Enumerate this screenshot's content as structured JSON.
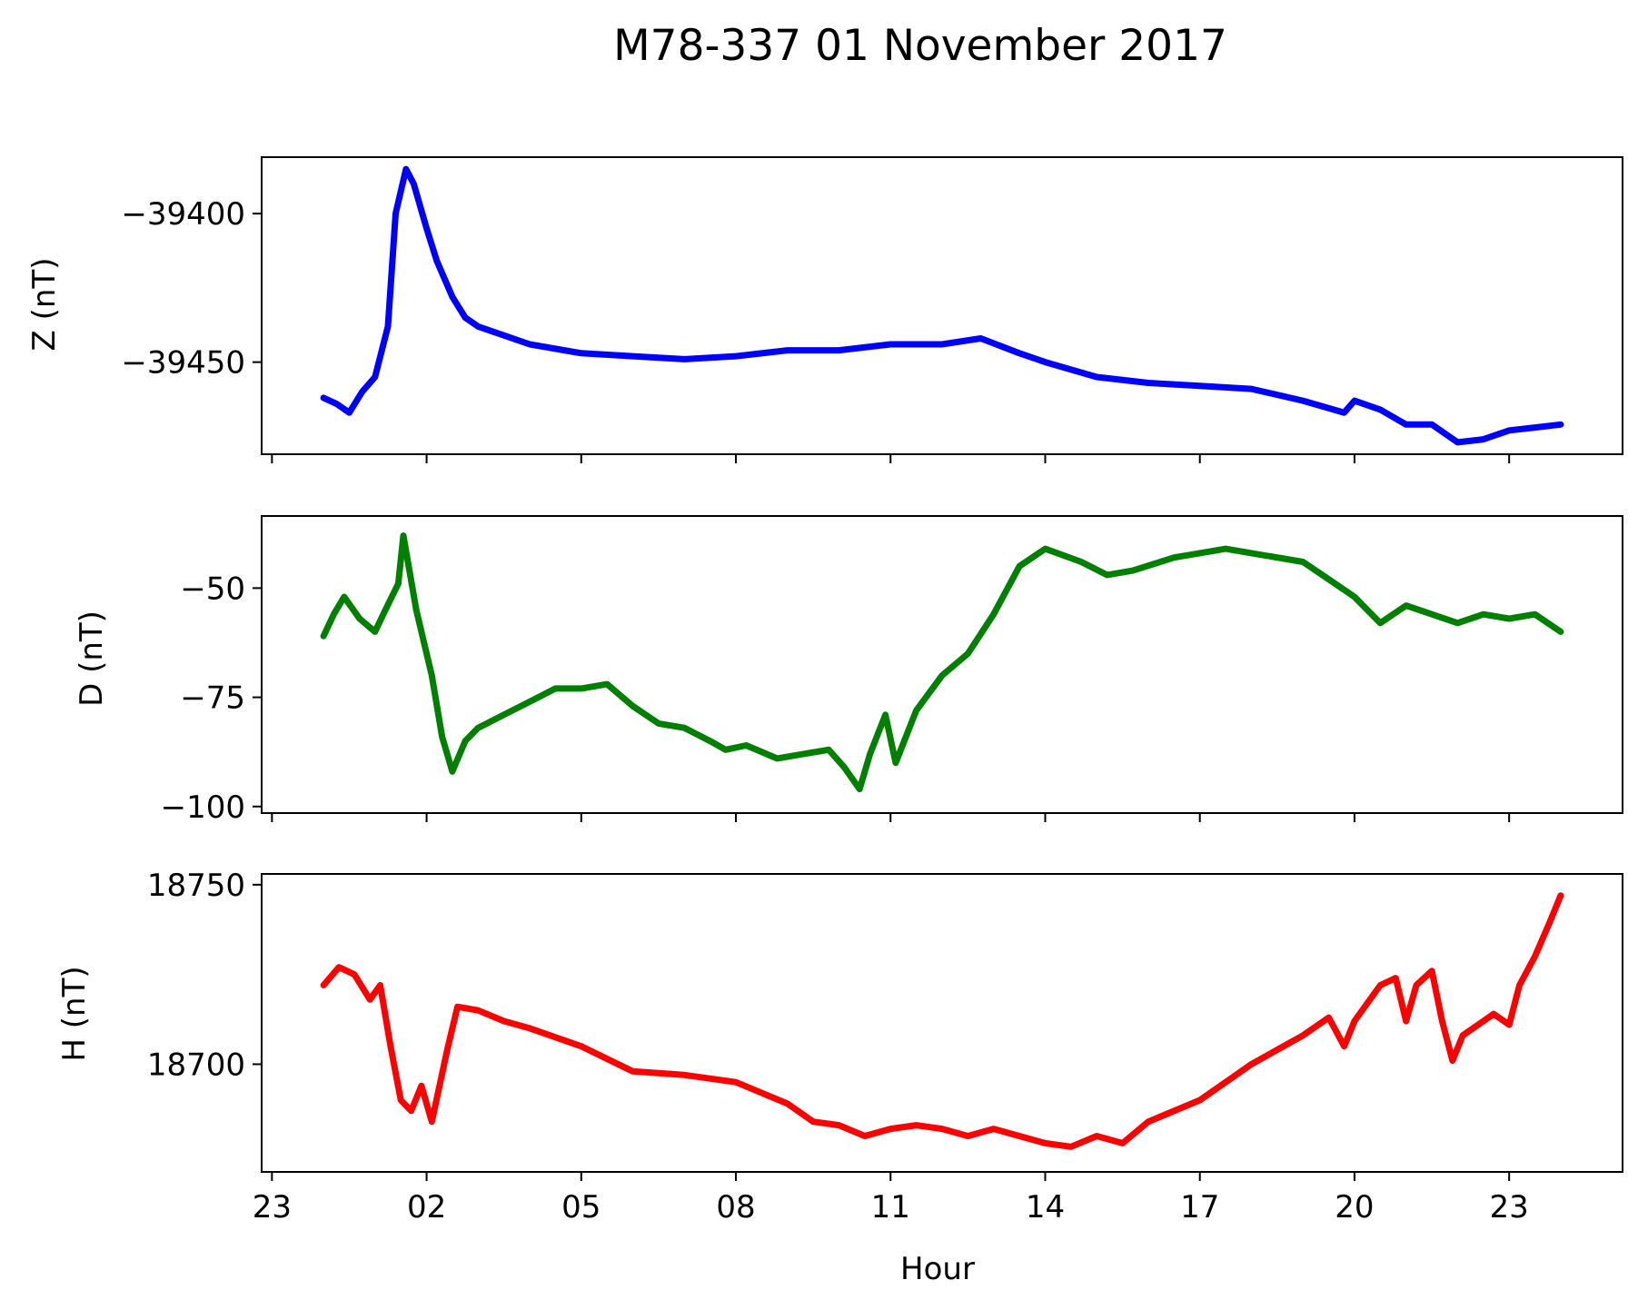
{
  "chart_data": {
    "type": "line",
    "title": "M78-337 01 November 2017",
    "xlabel": "Hour",
    "x_tick_labels": [
      "23",
      "02",
      "05",
      "08",
      "11",
      "14",
      "17",
      "20",
      "23"
    ],
    "x_ticks_hours": [
      -1,
      2,
      5,
      8,
      11,
      14,
      17,
      20,
      23
    ],
    "xlim": [
      -1.2,
      25.2
    ],
    "grid": false,
    "panels": [
      {
        "id": "z",
        "ylabel": "Z (nT)",
        "color": "#0000ff",
        "ylim": [
          -39481,
          -39381
        ],
        "y_ticks": [
          -39400,
          -39450
        ],
        "y_tick_labels": [
          "−39400",
          "−39450"
        ],
        "series": [
          {
            "x": [
              0.0,
              0.25,
              0.5,
              0.75,
              1.0,
              1.25,
              1.4,
              1.6,
              1.75,
              2.0,
              2.2,
              2.5,
              2.75,
              3.0,
              3.5,
              4.0,
              5.0,
              6.0,
              7.0,
              8.0,
              9.0,
              10.0,
              11.0,
              12.0,
              12.75,
              13.5,
              14.0,
              15.0,
              16.0,
              17.0,
              18.0,
              19.0,
              19.8,
              20.0,
              20.5,
              21.0,
              21.5,
              22.0,
              22.5,
              23.0,
              23.5,
              24.0
            ],
            "y": [
              -39462,
              -39464,
              -39467,
              -39460,
              -39455,
              -39438,
              -39400,
              -39385,
              -39390,
              -39405,
              -39416,
              -39428,
              -39435,
              -39438,
              -39441,
              -39444,
              -39447,
              -39448,
              -39449,
              -39448,
              -39446,
              -39446,
              -39444,
              -39444,
              -39442,
              -39447,
              -39450,
              -39455,
              -39457,
              -39458,
              -39459,
              -39463,
              -39467,
              -39463,
              -39466,
              -39471,
              -39471,
              -39477,
              -39476,
              -39473,
              -39472,
              -39471
            ]
          }
        ]
      },
      {
        "id": "d",
        "ylabel": "D (nT)",
        "color": "#008000",
        "ylim": [
          -101.5,
          -33.5
        ],
        "y_ticks": [
          -50,
          -75,
          -100
        ],
        "y_tick_labels": [
          "−50",
          "−75",
          "−100"
        ],
        "series": [
          {
            "x": [
              0.0,
              0.2,
              0.4,
              0.7,
              1.0,
              1.2,
              1.45,
              1.55,
              1.8,
              2.1,
              2.3,
              2.5,
              2.75,
              3.0,
              3.5,
              4.0,
              4.5,
              5.0,
              5.5,
              6.0,
              6.5,
              7.0,
              7.5,
              7.8,
              8.2,
              8.8,
              9.3,
              9.8,
              10.1,
              10.4,
              10.6,
              10.9,
              11.1,
              11.5,
              12.0,
              12.5,
              13.0,
              13.5,
              14.0,
              14.7,
              15.2,
              15.7,
              16.5,
              17.0,
              17.5,
              18.0,
              19.0,
              19.5,
              20.0,
              20.5,
              21.0,
              21.5,
              22.0,
              22.5,
              23.0,
              23.5,
              24.0
            ],
            "y": [
              -61,
              -56,
              -52,
              -57,
              -60,
              -55,
              -49,
              -38,
              -55,
              -70,
              -84,
              -92,
              -85,
              -82,
              -79,
              -76,
              -73,
              -73,
              -72,
              -77,
              -81,
              -82,
              -85,
              -87,
              -86,
              -89,
              -88,
              -87,
              -91,
              -96,
              -88,
              -79,
              -90,
              -78,
              -70,
              -65,
              -56,
              -45,
              -41,
              -44,
              -47,
              -46,
              -43,
              -42,
              -41,
              -42,
              -44,
              -48,
              -52,
              -58,
              -54,
              -56,
              -58,
              -56,
              -57,
              -56,
              -60
            ]
          }
        ]
      },
      {
        "id": "h",
        "ylabel": "H (nT)",
        "color": "#ff0000",
        "ylim": [
          18670,
          18753
        ],
        "y_ticks": [
          18750,
          18700
        ],
        "y_tick_labels": [
          "18750",
          "18700"
        ],
        "series": [
          {
            "x": [
              0.0,
              0.3,
              0.6,
              0.9,
              1.1,
              1.3,
              1.5,
              1.7,
              1.9,
              2.1,
              2.4,
              2.6,
              3.0,
              3.5,
              4.0,
              5.0,
              6.0,
              7.0,
              8.0,
              9.0,
              9.5,
              10.0,
              10.5,
              11.0,
              11.5,
              12.0,
              12.5,
              13.0,
              13.5,
              14.0,
              14.5,
              15.0,
              15.5,
              16.0,
              17.0,
              17.5,
              18.0,
              18.5,
              19.0,
              19.5,
              19.8,
              20.0,
              20.5,
              20.8,
              21.0,
              21.2,
              21.5,
              21.7,
              21.9,
              22.1,
              22.5,
              22.7,
              23.0,
              23.2,
              23.5,
              23.8,
              24.0
            ],
            "y": [
              18722,
              18727,
              18725,
              18718,
              18722,
              18705,
              18690,
              18687,
              18694,
              18684,
              18704,
              18716,
              18715,
              18712,
              18710,
              18705,
              18698,
              18697,
              18695,
              18689,
              18684,
              18683,
              18680,
              18682,
              18683,
              18682,
              18680,
              18682,
              18680,
              18678,
              18677,
              18680,
              18678,
              18684,
              18690,
              18695,
              18700,
              18704,
              18708,
              18713,
              18705,
              18712,
              18722,
              18724,
              18712,
              18722,
              18726,
              18712,
              18701,
              18708,
              18712,
              18714,
              18711,
              18722,
              18730,
              18740,
              18747
            ]
          }
        ]
      }
    ]
  }
}
